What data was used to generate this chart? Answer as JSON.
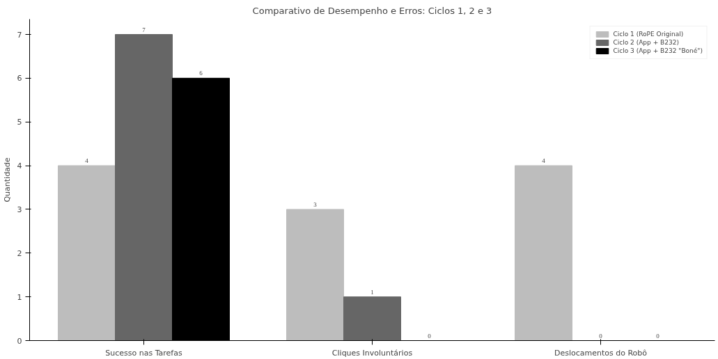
{
  "chart_data": {
    "type": "bar",
    "title": "Comparativo de Desempenho e Erros: Ciclos 1, 2 e 3",
    "ylabel": "Quantidade",
    "categories": [
      "Sucesso nas Tarefas",
      "Cliques Involuntários",
      "Deslocamentos do Robô"
    ],
    "series": [
      {
        "name": "Ciclo 1 (RoPE Original)",
        "color": "#bdbdbd",
        "values": [
          4,
          3,
          4
        ]
      },
      {
        "name": "Ciclo 2 (App + B232)",
        "color": "#666666",
        "values": [
          7,
          1,
          0
        ]
      },
      {
        "name": "Ciclo 3 (App + B232 \"Boné\")",
        "color": "#000000",
        "values": [
          6,
          0,
          0
        ]
      }
    ],
    "ylim": [
      0,
      7.35
    ],
    "yticks": [
      0,
      1,
      2,
      3,
      4,
      5,
      6,
      7
    ],
    "data_labels": true,
    "legend": "top right",
    "grid": false
  }
}
